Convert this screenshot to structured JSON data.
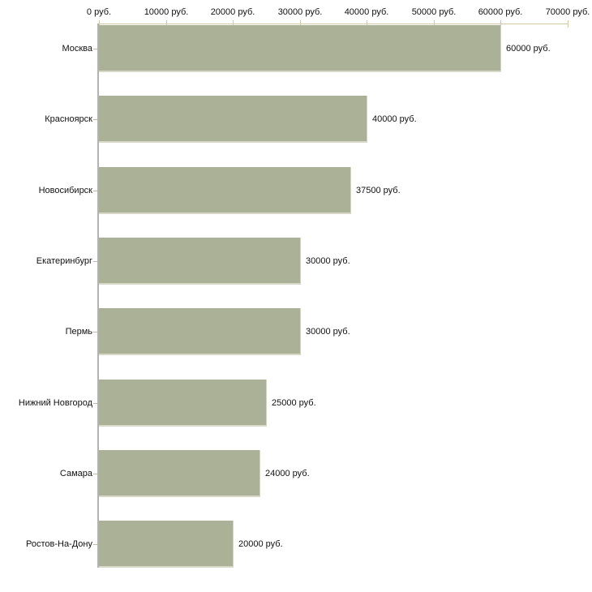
{
  "chart_data": {
    "type": "bar",
    "orientation": "horizontal",
    "title": "",
    "xlabel": "",
    "ylabel": "",
    "unit": "руб.",
    "xlim": [
      0,
      70000
    ],
    "grid": false,
    "legend": null,
    "categories": [
      "Москва",
      "Красноярск",
      "Новосибирск",
      "Екатеринбург",
      "Пермь",
      "Нижний Новгород",
      "Самара",
      "Ростов-На-Дону"
    ],
    "values": [
      60000,
      40000,
      37500,
      30000,
      30000,
      25000,
      24000,
      20000
    ],
    "value_labels": [
      "60000 руб.",
      "40000 руб.",
      "37500 руб.",
      "30000 руб.",
      "30000 руб.",
      "25000 руб.",
      "24000 руб.",
      "20000 руб."
    ],
    "x_ticks": [
      {
        "value": 0,
        "label": "0 руб."
      },
      {
        "value": 10000,
        "label": "10000 руб."
      },
      {
        "value": 20000,
        "label": "20000 руб."
      },
      {
        "value": 30000,
        "label": "30000 руб."
      },
      {
        "value": 40000,
        "label": "40000 руб."
      },
      {
        "value": 50000,
        "label": "50000 руб."
      },
      {
        "value": 60000,
        "label": "60000 руб."
      },
      {
        "value": 70000,
        "label": "70000 руб."
      }
    ],
    "colors": {
      "bar": "#abb197",
      "bar_edge": "#d8d8c8",
      "value_axis": "#cdc9a9",
      "category_axis": "#b3b3b3",
      "text": "#111111",
      "background": "#ffffff"
    }
  }
}
